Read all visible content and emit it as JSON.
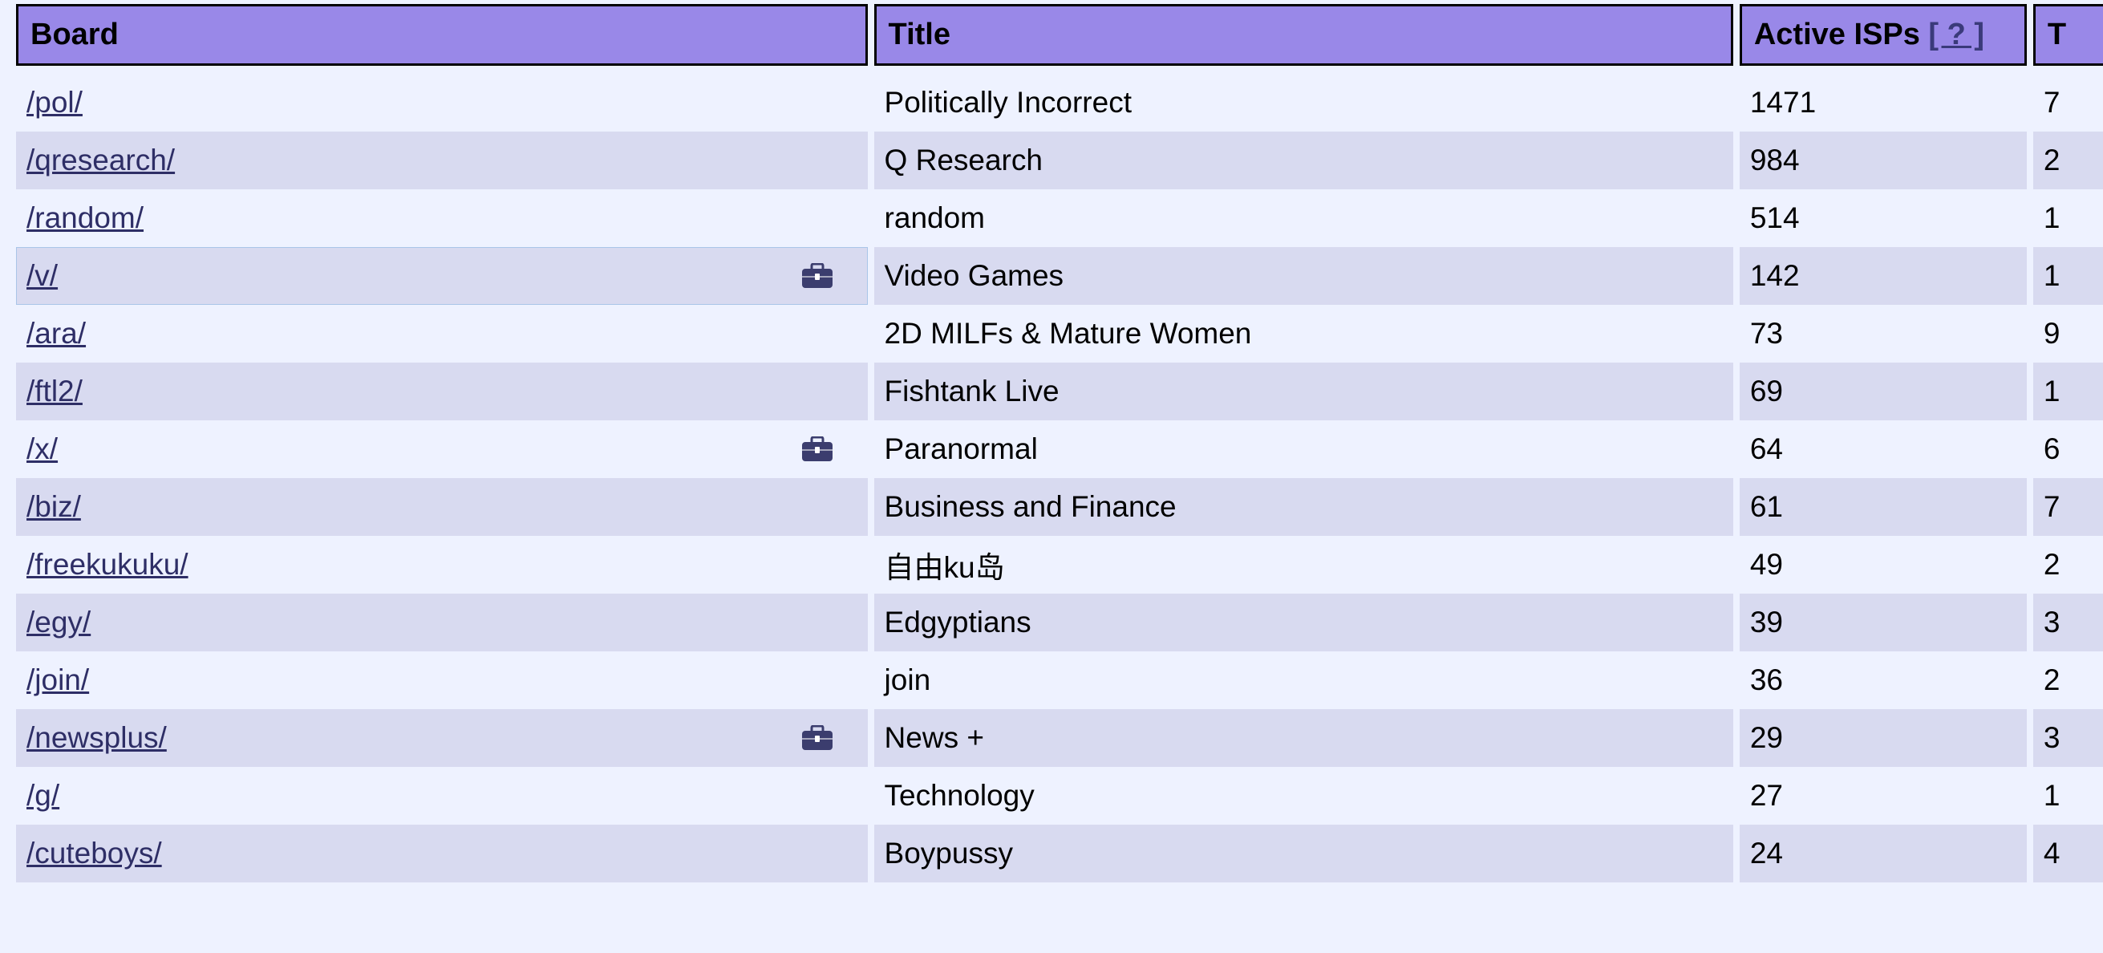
{
  "headers": {
    "board": "Board",
    "title": "Title",
    "isps": "Active ISPs",
    "isps_help": "[ ? ]",
    "next": "T"
  },
  "rows": [
    {
      "board": "/pol/",
      "title": "Politically Incorrect",
      "isps": "1471",
      "next": "7",
      "icon": false
    },
    {
      "board": "/qresearch/",
      "title": "Q Research",
      "isps": "984",
      "next": "2",
      "icon": false
    },
    {
      "board": "/random/",
      "title": "random",
      "isps": "514",
      "next": "1",
      "icon": false
    },
    {
      "board": "/v/",
      "title": "Video Games",
      "isps": "142",
      "next": "1",
      "icon": "briefcase-icon"
    },
    {
      "board": "/ara/",
      "title": "2D MILFs & Mature Women",
      "isps": "73",
      "next": "9",
      "icon": false
    },
    {
      "board": "/ftl2/",
      "title": "Fishtank Live",
      "isps": "69",
      "next": "1",
      "icon": false
    },
    {
      "board": "/x/",
      "title": "Paranormal",
      "isps": "64",
      "next": "6",
      "icon": "briefcase-icon"
    },
    {
      "board": "/biz/",
      "title": "Business and Finance",
      "isps": "61",
      "next": "7",
      "icon": false
    },
    {
      "board": "/freekukuku/",
      "title": "自由ku岛",
      "isps": "49",
      "next": "2",
      "icon": false
    },
    {
      "board": "/egy/",
      "title": "Edgyptians",
      "isps": "39",
      "next": "3",
      "icon": false
    },
    {
      "board": "/join/",
      "title": "join",
      "isps": "36",
      "next": "2",
      "icon": false
    },
    {
      "board": "/newsplus/",
      "title": "News +",
      "isps": "29",
      "next": "3",
      "icon": "briefcase-icon"
    },
    {
      "board": "/g/",
      "title": "Technology",
      "isps": "27",
      "next": "1",
      "icon": false
    },
    {
      "board": "/cuteboys/",
      "title": "Boypussy",
      "isps": "24",
      "next": "4",
      "icon": false
    }
  ],
  "colors": {
    "header_bg": "#9988e8",
    "alt_row_bg": "#d8daf0",
    "page_bg": "#eef2ff",
    "link": "#2e2e66",
    "icon": "#3b3d6e"
  }
}
